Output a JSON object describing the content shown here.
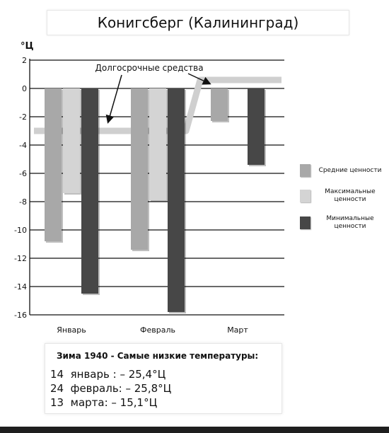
{
  "chart_data": {
    "type": "bar",
    "title": "Конигсберг (Калининград)",
    "ylabel": "°Ц",
    "ylim": [
      -16,
      2
    ],
    "yticks": [
      2,
      0,
      -2,
      -4,
      -6,
      -8,
      -10,
      -12,
      -14,
      -16
    ],
    "grid": true,
    "categories": [
      "Январь",
      "Февраль",
      "Март"
    ],
    "series": [
      {
        "name": "Средние ценности",
        "values": [
          -10.8,
          -11.4,
          -2.3
        ],
        "color": "#a8a8a8"
      },
      {
        "name": "Максимальные ценности",
        "values": [
          -7.4,
          -7.9,
          0
        ],
        "color": "#d4d4d4"
      },
      {
        "name": "Минимальные ценности",
        "values": [
          -14.5,
          -15.8,
          -5.4
        ],
        "color": "#474747"
      }
    ],
    "long_term_line": {
      "values": [
        -3.0,
        -3.0,
        0.6
      ],
      "color": "#cfcfcf"
    },
    "annotation": "Долгосрочные средства",
    "legend_position": "right"
  },
  "note": {
    "title": "Зима 1940 - Самые низкие температуры:",
    "lines": [
      "14  январь : – 25,4°Ц",
      "24  февраль: – 25,8°Ц",
      "13  марта: – 15,1°Ц"
    ]
  }
}
